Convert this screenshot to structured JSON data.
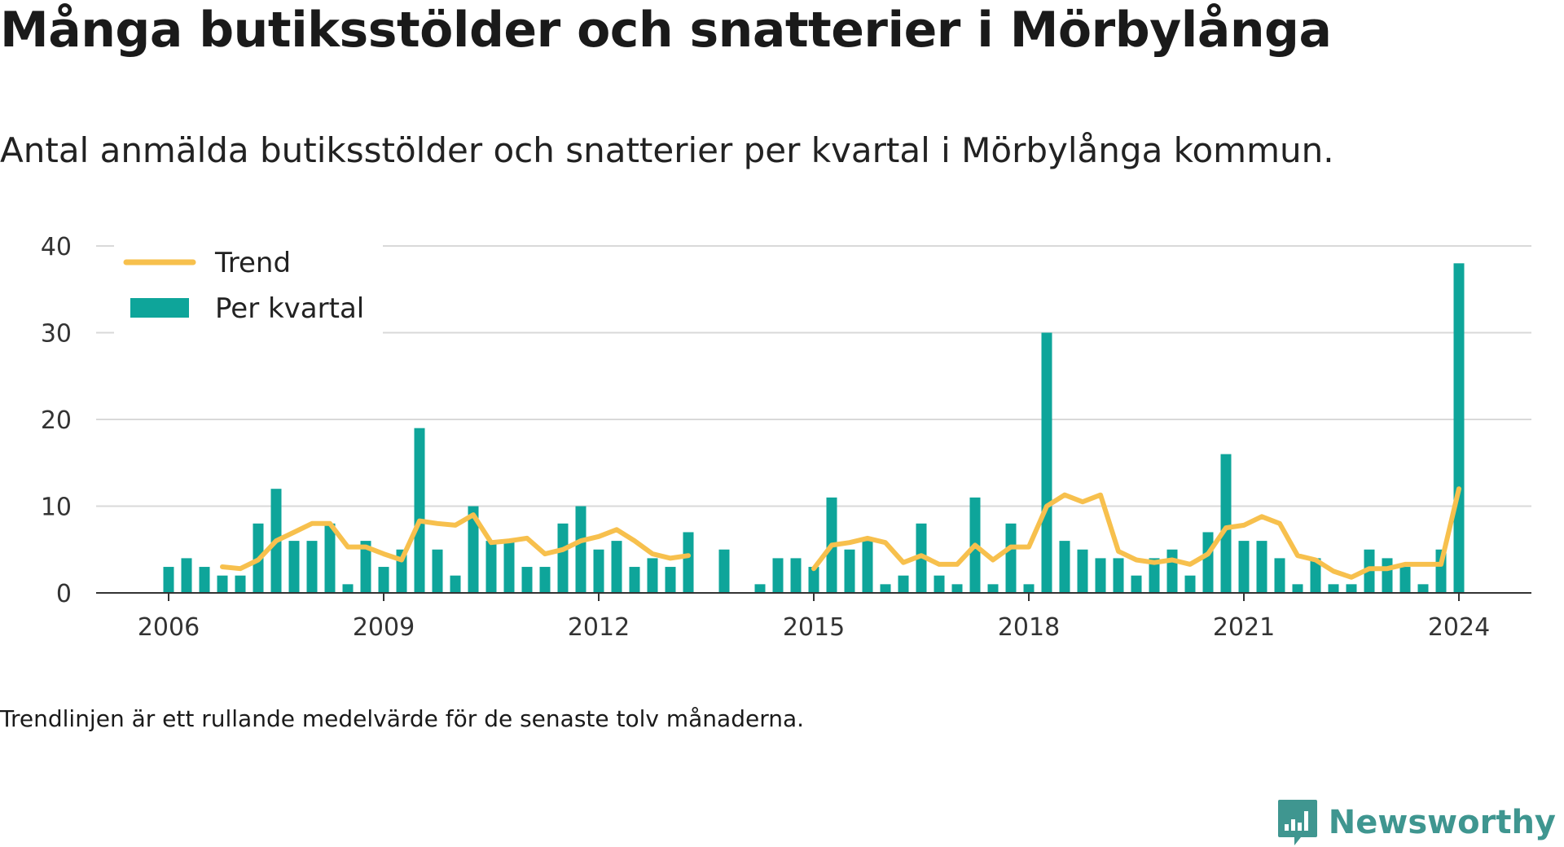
{
  "title": "Många butiksstölder och snatterier i Mörbylånga",
  "subtitle": "Antal anmälda butiksstölder och snatterier per kvartal i Mörbylånga kommun.",
  "note": "Trendlinjen är ett rullande medelvärde för de senaste tolv månaderna.",
  "brand": {
    "name": "Newsworthy",
    "icon": "newsworthy-logo-icon"
  },
  "colors": {
    "bar": "#0ea59a",
    "trend": "#f7c04d",
    "grid": "#d9d9d9",
    "axis": "#333333"
  },
  "chart_data": {
    "type": "bar",
    "title": "Många butiksstölder och snatterier i Mörbylånga",
    "xlabel": "",
    "ylabel": "",
    "ylim": [
      0,
      40
    ],
    "y_ticks": [
      "0",
      "10",
      "20",
      "30",
      "40"
    ],
    "x_ticks": [
      "2006",
      "2009",
      "2012",
      "2015",
      "2018",
      "2021",
      "2024"
    ],
    "grid": true,
    "legend_position": "top-left",
    "categories": [
      "2006 Q1",
      "2006 Q2",
      "2006 Q3",
      "2006 Q4",
      "2007 Q1",
      "2007 Q2",
      "2007 Q3",
      "2007 Q4",
      "2008 Q1",
      "2008 Q2",
      "2008 Q3",
      "2008 Q4",
      "2009 Q1",
      "2009 Q2",
      "2009 Q3",
      "2009 Q4",
      "2010 Q1",
      "2010 Q2",
      "2010 Q3",
      "2010 Q4",
      "2011 Q1",
      "2011 Q2",
      "2011 Q3",
      "2011 Q4",
      "2012 Q1",
      "2012 Q2",
      "2012 Q3",
      "2012 Q4",
      "2013 Q1",
      "2013 Q2",
      "2013 Q3",
      "2013 Q4",
      "2014 Q1",
      "2014 Q2",
      "2014 Q3",
      "2014 Q4",
      "2015 Q1",
      "2015 Q2",
      "2015 Q3",
      "2015 Q4",
      "2016 Q1",
      "2016 Q2",
      "2016 Q3",
      "2016 Q4",
      "2017 Q1",
      "2017 Q2",
      "2017 Q3",
      "2017 Q4",
      "2018 Q1",
      "2018 Q2",
      "2018 Q3",
      "2018 Q4",
      "2019 Q1",
      "2019 Q2",
      "2019 Q3",
      "2019 Q4",
      "2020 Q1",
      "2020 Q2",
      "2020 Q3",
      "2020 Q4",
      "2021 Q1",
      "2021 Q2",
      "2021 Q3",
      "2021 Q4",
      "2022 Q1",
      "2022 Q2",
      "2022 Q3",
      "2022 Q4",
      "2023 Q1",
      "2023 Q2",
      "2023 Q3",
      "2023 Q4",
      "2024 Q1"
    ],
    "series": [
      {
        "name": "Per kvartal",
        "type": "bar",
        "values": [
          3,
          4,
          3,
          2,
          2,
          8,
          12,
          6,
          6,
          8,
          1,
          6,
          3,
          5,
          19,
          5,
          2,
          10,
          6,
          6,
          3,
          3,
          8,
          10,
          5,
          6,
          3,
          4,
          3,
          7,
          null,
          5,
          null,
          1,
          4,
          4,
          3,
          11,
          5,
          6,
          1,
          2,
          8,
          2,
          1,
          11,
          1,
          8,
          1,
          30,
          6,
          5,
          4,
          4,
          2,
          4,
          5,
          2,
          7,
          16,
          6,
          6,
          4,
          1,
          4,
          1,
          1,
          5,
          4,
          3,
          1,
          5,
          38
        ]
      },
      {
        "name": "Trend",
        "type": "line",
        "values": [
          null,
          null,
          null,
          3.0,
          2.8,
          3.8,
          6.0,
          7.0,
          8.0,
          8.0,
          5.3,
          5.3,
          4.5,
          3.8,
          8.3,
          8.0,
          7.8,
          9.0,
          5.8,
          6.0,
          6.3,
          4.5,
          5.0,
          6.0,
          6.5,
          7.3,
          6.0,
          4.5,
          4.0,
          4.3,
          null,
          null,
          null,
          null,
          null,
          null,
          2.8,
          5.5,
          5.8,
          6.3,
          5.8,
          3.5,
          4.3,
          3.3,
          3.3,
          5.5,
          3.8,
          5.3,
          5.3,
          10.0,
          11.3,
          10.5,
          11.3,
          4.8,
          3.8,
          3.5,
          3.8,
          3.3,
          4.5,
          7.5,
          7.8,
          8.8,
          8.0,
          4.3,
          3.8,
          2.5,
          1.8,
          2.8,
          2.8,
          3.3,
          3.3,
          3.3,
          12.0
        ]
      }
    ]
  }
}
